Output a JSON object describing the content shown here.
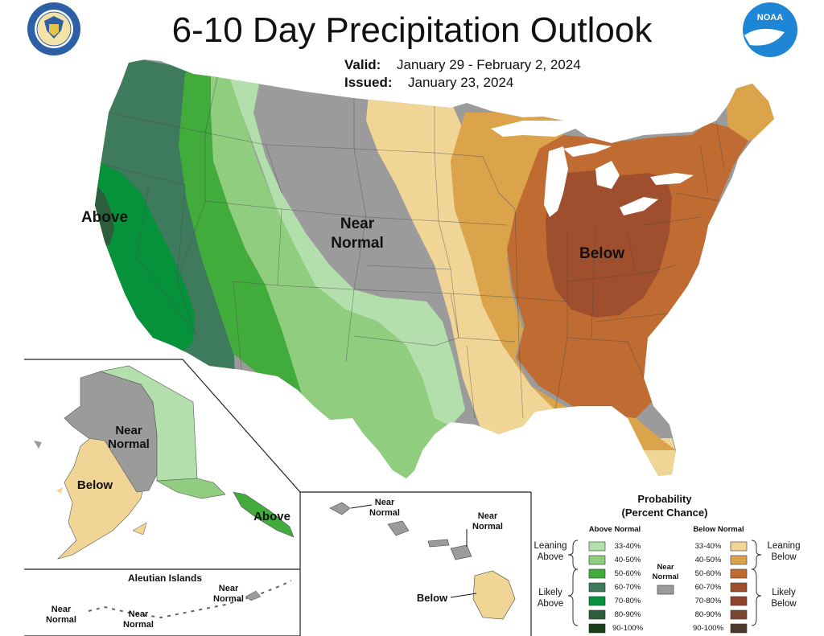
{
  "title": "6-10 Day Precipitation Outlook",
  "valid_label": "Valid:",
  "valid_value": "January 29 - February 2, 2024",
  "issued_label": "Issued:",
  "issued_value": "January 23, 2024",
  "logos": {
    "left": {
      "name": "commerce-seal",
      "text": "DEPARTMENT OF COMMERCE · UNITED STATES OF AMERICA"
    },
    "right": {
      "name": "noaa-logo",
      "text": "NOAA"
    }
  },
  "map_labels": {
    "conus_above": "Above",
    "conus_near_1": "Near",
    "conus_near_2": "Normal",
    "conus_below": "Below",
    "ak_near_1": "Near",
    "ak_near_2": "Normal",
    "ak_below": "Below",
    "ak_above": "Above",
    "aleutian_title": "Aleutian Islands",
    "al_near_a1": "Near",
    "al_near_a2": "Normal",
    "al_near_b1": "Near",
    "al_near_b2": "Normal",
    "al_near_c1": "Near",
    "al_near_c2": "Normal",
    "hi_near_a1": "Near",
    "hi_near_a2": "Normal",
    "hi_near_b1": "Near",
    "hi_near_b2": "Normal",
    "hi_below": "Below"
  },
  "legend": {
    "title_1": "Probability",
    "title_2": "(Percent Chance)",
    "above_header": "Above Normal",
    "below_header": "Below Normal",
    "near_1": "Near",
    "near_2": "Normal",
    "leaning_above_1": "Leaning",
    "leaning_above_2": "Above",
    "likely_above_1": "Likely",
    "likely_above_2": "Above",
    "leaning_below_1": "Leaning",
    "leaning_below_2": "Below",
    "likely_below_1": "Likely",
    "likely_below_2": "Below",
    "ranges": [
      "33-40%",
      "40-50%",
      "50-60%",
      "60-70%",
      "70-80%",
      "80-90%",
      "90-100%"
    ],
    "above_colors": [
      "#b3dfac",
      "#90cd7f",
      "#41ab3c",
      "#3e7a5c",
      "#06913b",
      "#2d5e3b",
      "#1a3e1a"
    ],
    "below_colors": [
      "#f1d597",
      "#dca44a",
      "#bf6b31",
      "#a04f2e",
      "#8f432a",
      "#7a4830",
      "#4c3a2c"
    ],
    "near_color": "#9b9b9b"
  }
}
